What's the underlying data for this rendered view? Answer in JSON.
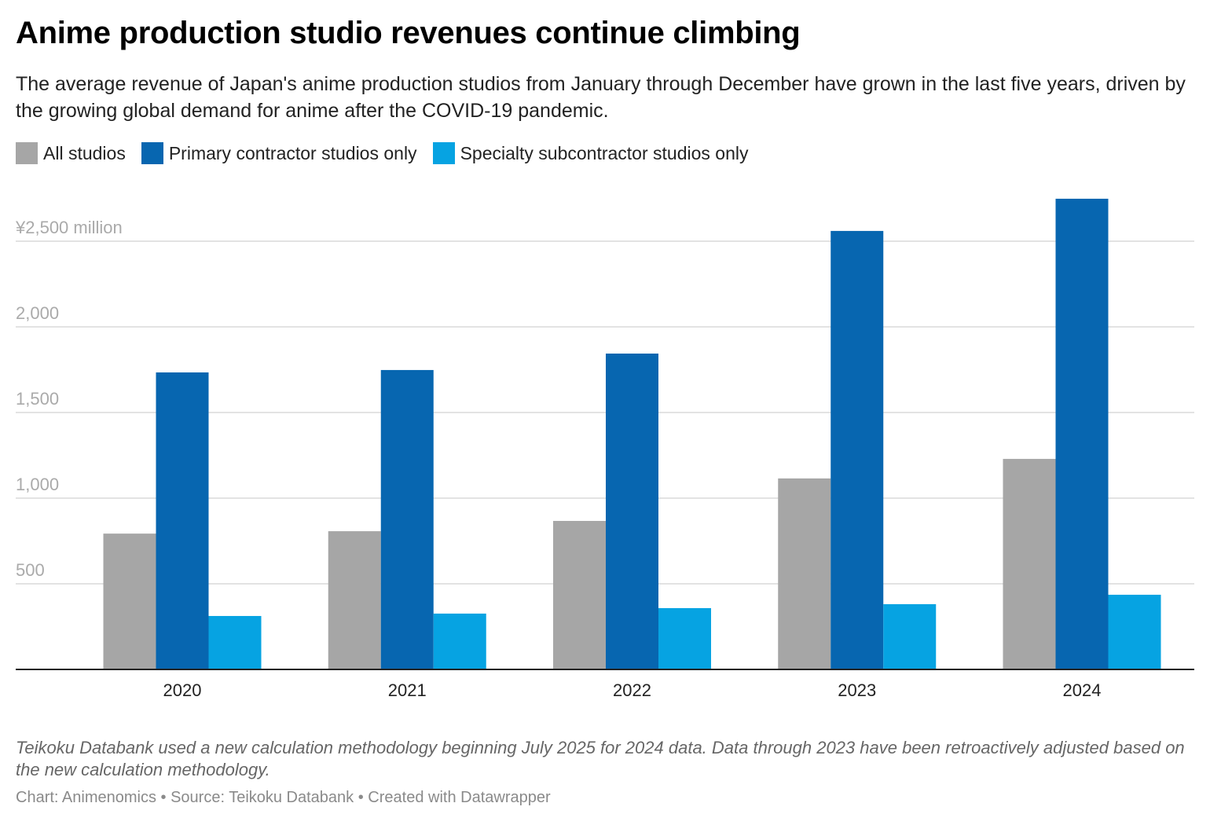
{
  "title": "Anime production studio revenues continue climbing",
  "subtitle": "The average revenue of Japan's anime production studios from January through December have grown in the last five years, driven by the growing global demand for anime after the COVID-19 pandemic.",
  "notes": "Teikoku Databank used a new calculation methodology beginning July 2025 for 2024 data. Data through 2023 have been retroactively adjusted based on the new calculation methodology.",
  "footer": "Chart: Animenomics • Source: Teikoku Databank • Created with Datawrapper",
  "chart_data": {
    "type": "bar",
    "title": "Anime production studio revenues continue climbing",
    "xlabel": "",
    "ylabel": "¥ million",
    "categories": [
      "2020",
      "2021",
      "2022",
      "2023",
      "2024"
    ],
    "series": [
      {
        "name": "All studios",
        "color": "#a6a6a6",
        "values": [
          793,
          807,
          867,
          1115,
          1229
        ]
      },
      {
        "name": "Primary contractor studios only",
        "color": "#0766b0",
        "values": [
          1734,
          1748,
          1844,
          2560,
          2748
        ]
      },
      {
        "name": "Specialty subcontractor studios only",
        "color": "#06a3e2",
        "values": [
          312,
          326,
          358,
          381,
          436
        ]
      }
    ],
    "yticks": [
      500,
      1000,
      1500,
      2000,
      2500
    ],
    "ytick_labels": [
      "500",
      "1,000",
      "1,500",
      "2,000",
      "¥2,500 million"
    ],
    "ylim": [
      0,
      2750
    ],
    "grid": true,
    "legend_position": "top-left"
  }
}
